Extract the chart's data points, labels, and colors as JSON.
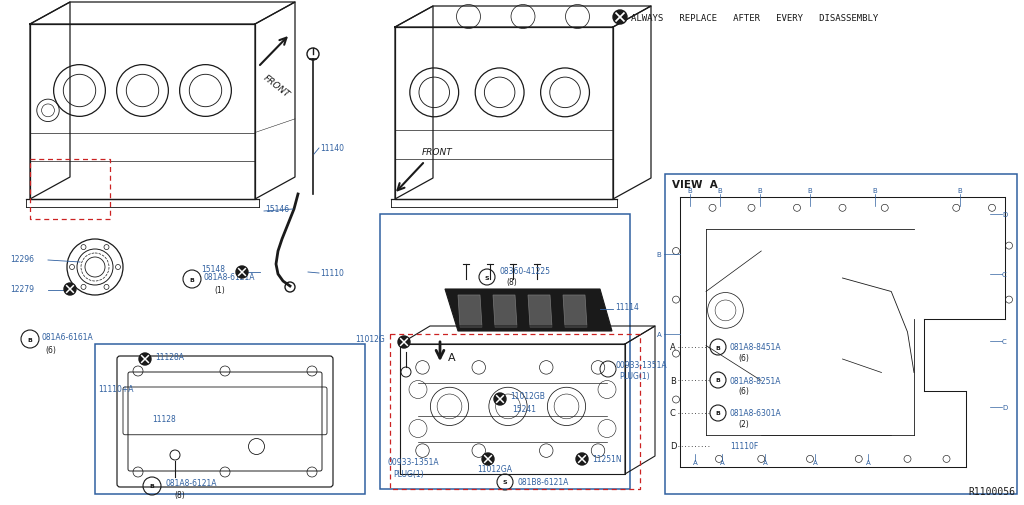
{
  "bg_color": "#ffffff",
  "line_color": "#1a1a1a",
  "blue_color": "#3060a0",
  "red_color": "#cc2222",
  "note_text": "ALWAYS   REPLACE   AFTER   EVERY   DISASSEMBLY",
  "view_a_title": "VIEW  A",
  "ref_code": "R1100056",
  "figsize": [
    10.24,
    5.06
  ],
  "dpi": 100
}
